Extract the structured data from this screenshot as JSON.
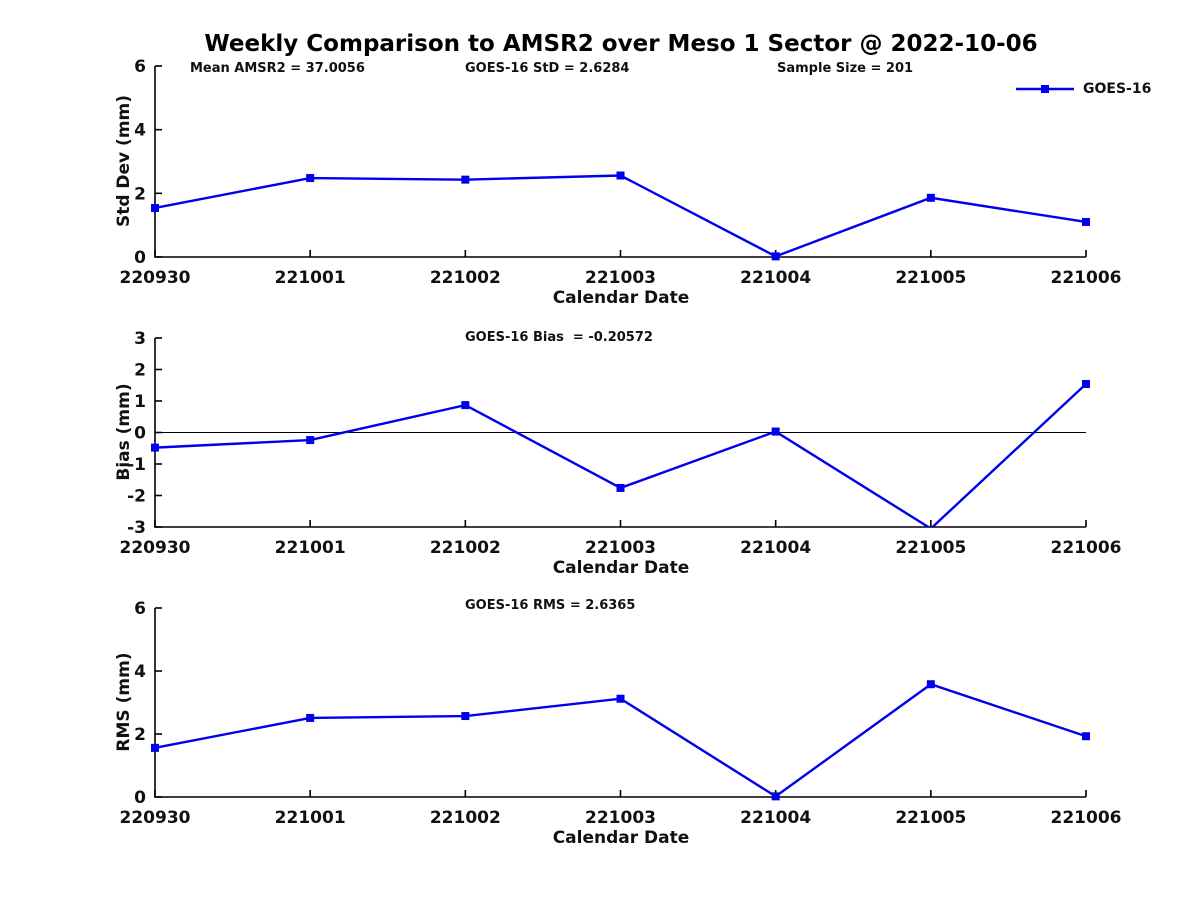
{
  "title": "Weekly Comparison to AMSR2 over Meso 1 Sector @ 2022-10-06",
  "chart_data": {
    "type": "line",
    "categories": [
      "220930",
      "221001",
      "221002",
      "221003",
      "221004",
      "221005",
      "221006"
    ],
    "xlabel": "Calendar Date",
    "legend": {
      "label": "GOES-16",
      "position": "top-right"
    },
    "series_color": "#0000EE",
    "axis_color": "#000000",
    "grid": false,
    "marker": "square",
    "subplots": [
      {
        "ylabel": "Std Dev (mm)",
        "ylim": [
          0,
          6
        ],
        "yticks": [
          0,
          2,
          4,
          6
        ],
        "zero_line": false,
        "annotations": [
          "Mean AMSR2 = 37.0056",
          "GOES-16 StD = 2.6284",
          "Sample Size = 201"
        ],
        "values": [
          1.54,
          2.48,
          2.43,
          2.56,
          0.02,
          1.86,
          1.1
        ]
      },
      {
        "ylabel": "Bias (mm)",
        "ylim": [
          -3,
          3
        ],
        "yticks": [
          -3,
          -2,
          -1,
          0,
          1,
          2,
          3
        ],
        "zero_line": true,
        "annotations": [
          "GOES-16 Bias  = -0.20572"
        ],
        "values": [
          -0.48,
          -0.24,
          0.87,
          -1.76,
          0.03,
          -3.05,
          1.54
        ]
      },
      {
        "ylabel": "RMS (mm)",
        "ylim": [
          0,
          6
        ],
        "yticks": [
          0,
          2,
          4,
          6
        ],
        "zero_line": false,
        "annotations": [
          "GOES-16 RMS = 2.6365"
        ],
        "values": [
          1.56,
          2.51,
          2.57,
          3.12,
          0.02,
          3.58,
          1.93
        ]
      }
    ]
  }
}
